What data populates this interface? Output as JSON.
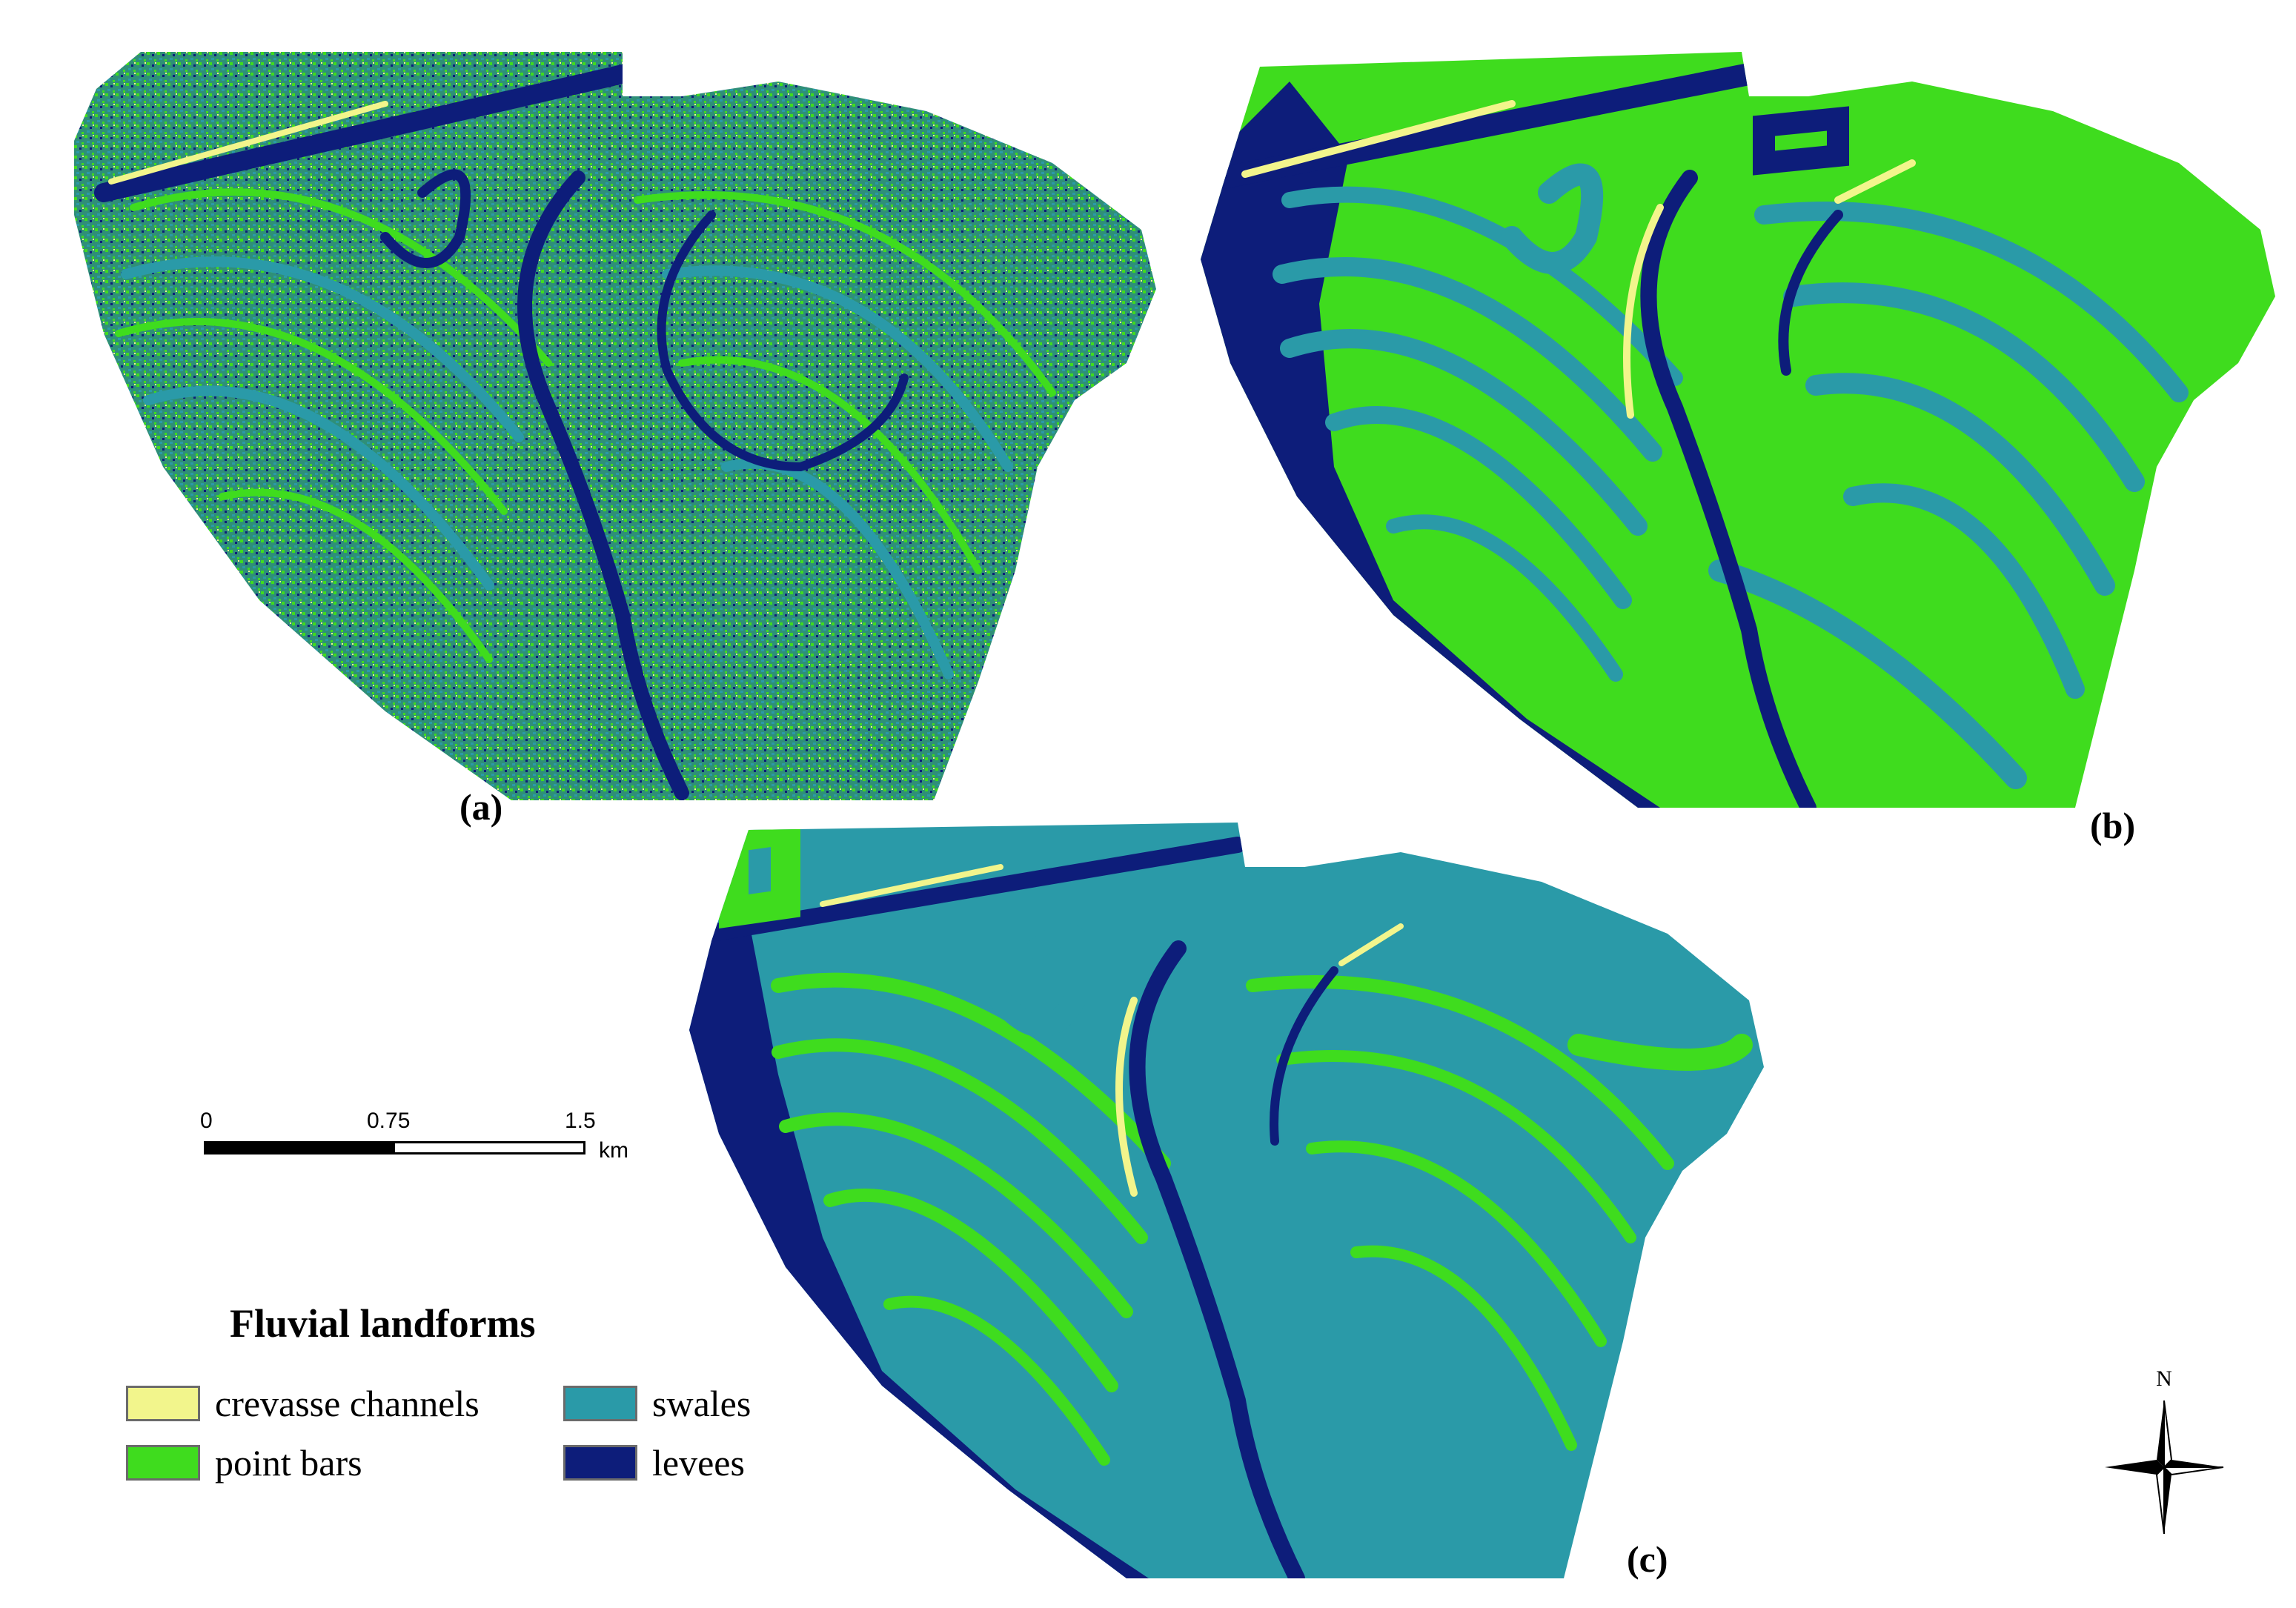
{
  "panels": [
    {
      "id": "a",
      "label": "(a)"
    },
    {
      "id": "b",
      "label": "(b)"
    },
    {
      "id": "c",
      "label": "(c)"
    }
  ],
  "colors": {
    "crevasse_channels": "#f2f58c",
    "point_bars": "#3fdc1e",
    "swales": "#2a9aa8",
    "levees": "#0d1d7a",
    "mixed_texture": "#2c8c6a"
  },
  "scale_bar": {
    "ticks": [
      "0",
      "0.75",
      "1.5"
    ],
    "unit": "km"
  },
  "legend": {
    "title": "Fluvial landforms",
    "items": [
      {
        "label": "crevasse channels",
        "color": "#f2f58c"
      },
      {
        "label": "point bars",
        "color": "#3fdc1e"
      },
      {
        "label": "swales",
        "color": "#2a9aa8"
      },
      {
        "label": "levees",
        "color": "#0d1d7a"
      }
    ]
  },
  "north_arrow": {
    "label": "N"
  }
}
